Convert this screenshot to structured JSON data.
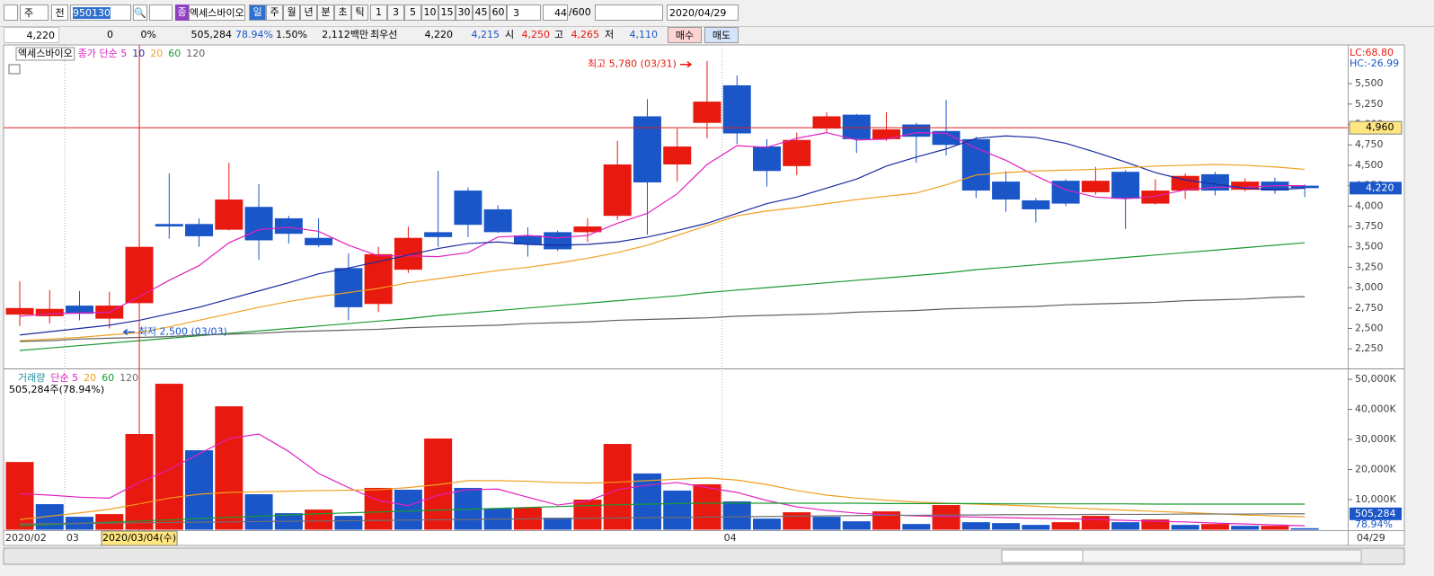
{
  "toolbar": {
    "period_button": "주",
    "scope": "전",
    "code": "950130",
    "market_badge": "종",
    "name": "엑세스바이오",
    "periods": [
      "일",
      "주",
      "월",
      "년",
      "분",
      "초",
      "틱"
    ],
    "intervals": [
      "1",
      "3",
      "5",
      "10",
      "15",
      "30",
      "45",
      "60"
    ],
    "interval_input": "3",
    "count": "44",
    "count_max": "/600",
    "date": "2020/04/29"
  },
  "info": {
    "price": "4,220",
    "change": "0",
    "change_pct": "0%",
    "volume": "505,284",
    "volume_ratio": "78.94%",
    "turnover": "1.50%",
    "amount": "2,112백만",
    "best_label": "최우선",
    "ask": "4,220",
    "bid": "4,215",
    "open_label": "시",
    "open": "4,250",
    "high_label": "고",
    "high": "4,265",
    "low_label": "저",
    "low": "4,110",
    "buy": "매수",
    "sell": "매도"
  },
  "chart_data": [
    {
      "type": "candlestick",
      "title": "엑세스바이오",
      "categories": [
        "2020/02",
        null,
        "03",
        null,
        null,
        null,
        null,
        null,
        null,
        null,
        null,
        null,
        null,
        null,
        null,
        null,
        null,
        null,
        null,
        null,
        null,
        null,
        null,
        null,
        "04",
        null,
        null,
        null,
        null,
        null,
        null,
        null,
        null,
        null,
        null,
        null,
        null,
        null,
        null,
        null,
        null,
        null,
        null,
        null
      ],
      "last_date": "04/29",
      "open": [
        2670,
        2650,
        2780,
        2620,
        2810,
        3780,
        3780,
        3710,
        3990,
        3850,
        3610,
        3240,
        2800,
        3220,
        3680,
        4190,
        3960,
        3640,
        3680,
        3680,
        3880,
        5100,
        4510,
        5020,
        5480,
        4730,
        4490,
        4950,
        5120,
        4820,
        5000,
        4920,
        4820,
        4300,
        4070,
        4310,
        4170,
        4420,
        4030,
        4190,
        4390,
        4200,
        4300,
        4250
      ],
      "high": [
        3080,
        2970,
        2960,
        2950,
        3620,
        4400,
        3850,
        4530,
        4270,
        3880,
        3850,
        3420,
        3500,
        3750,
        4430,
        4230,
        4010,
        3740,
        3700,
        3850,
        4800,
        5310,
        4950,
        5780,
        5600,
        4820,
        4900,
        5150,
        5130,
        5150,
        5020,
        5300,
        4850,
        4430,
        4100,
        4330,
        4480,
        4440,
        4330,
        4400,
        4420,
        4340,
        4350,
        4265
      ],
      "low": [
        2530,
        2560,
        2600,
        2500,
        2770,
        3600,
        3500,
        3700,
        3340,
        3540,
        3500,
        2600,
        2700,
        3180,
        3500,
        3620,
        3670,
        3380,
        3450,
        3560,
        3830,
        3650,
        4300,
        4830,
        4760,
        4240,
        4380,
        4900,
        4650,
        4800,
        4530,
        4620,
        4100,
        3930,
        3800,
        4000,
        4140,
        3720,
        4020,
        4090,
        4130,
        4180,
        4150,
        4110
      ],
      "close": [
        2750,
        2740,
        2680,
        2780,
        3500,
        3750,
        3630,
        4080,
        3580,
        3660,
        3520,
        2760,
        3410,
        3610,
        3620,
        3770,
        3680,
        3530,
        3470,
        3750,
        4510,
        4290,
        4730,
        5280,
        4890,
        4430,
        4810,
        5100,
        4820,
        4940,
        4850,
        4750,
        4190,
        4080,
        3960,
        4030,
        4310,
        4090,
        4190,
        4370,
        4190,
        4300,
        4190,
        4220
      ],
      "up_color": "#e8190f",
      "down_color": "#1a56c8",
      "series": [
        {
          "name": "종가 단순 5",
          "color": "#e020c0",
          "values": [
            2650,
            2680,
            2690,
            2700,
            2890,
            3090,
            3270,
            3550,
            3710,
            3740,
            3690,
            3520,
            3390,
            3390,
            3380,
            3430,
            3620,
            3640,
            3610,
            3640,
            3790,
            3910,
            4150,
            4510,
            4740,
            4720,
            4830,
            4900,
            4810,
            4820,
            4900,
            4890,
            4710,
            4560,
            4370,
            4200,
            4110,
            4090,
            4120,
            4200,
            4230,
            4230,
            4250,
            4250
          ]
        },
        {
          "name": "10",
          "color": "#1a2aa0",
          "values": [
            2420,
            2460,
            2500,
            2540,
            2600,
            2680,
            2760,
            2860,
            2960,
            3060,
            3170,
            3240,
            3320,
            3400,
            3480,
            3540,
            3560,
            3530,
            3520,
            3530,
            3560,
            3620,
            3700,
            3790,
            3910,
            4030,
            4110,
            4220,
            4330,
            4490,
            4600,
            4700,
            4830,
            4860,
            4840,
            4770,
            4660,
            4540,
            4410,
            4320,
            4270,
            4220,
            4200,
            4220
          ]
        },
        {
          "name": "20",
          "color": "#f0a020",
          "values": [
            2350,
            2370,
            2390,
            2420,
            2450,
            2520,
            2600,
            2680,
            2760,
            2830,
            2890,
            2940,
            2990,
            3060,
            3110,
            3160,
            3210,
            3250,
            3300,
            3360,
            3430,
            3520,
            3640,
            3760,
            3880,
            3940,
            3980,
            4030,
            4080,
            4120,
            4160,
            4260,
            4380,
            4410,
            4430,
            4440,
            4450,
            4470,
            4490,
            4500,
            4510,
            4500,
            4480,
            4450
          ]
        },
        {
          "name": "60",
          "color": "#1a9a30",
          "values": [
            2230,
            2260,
            2290,
            2320,
            2350,
            2380,
            2410,
            2440,
            2470,
            2500,
            2530,
            2560,
            2590,
            2620,
            2660,
            2690,
            2720,
            2750,
            2780,
            2810,
            2840,
            2870,
            2900,
            2940,
            2970,
            3000,
            3030,
            3060,
            3090,
            3120,
            3150,
            3180,
            3220,
            3250,
            3280,
            3310,
            3340,
            3370,
            3400,
            3430,
            3460,
            3490,
            3520,
            3550
          ]
        },
        {
          "name": "120",
          "color": "#606060",
          "values": [
            2340,
            2350,
            2370,
            2380,
            2390,
            2400,
            2420,
            2430,
            2440,
            2460,
            2470,
            2480,
            2490,
            2510,
            2520,
            2530,
            2540,
            2560,
            2570,
            2580,
            2600,
            2610,
            2620,
            2630,
            2650,
            2660,
            2670,
            2680,
            2700,
            2710,
            2720,
            2740,
            2750,
            2760,
            2770,
            2790,
            2800,
            2810,
            2820,
            2840,
            2850,
            2860,
            2880,
            2890
          ]
        }
      ],
      "ylim": [
        2010,
        5975
      ],
      "yticks": [
        {
          "value": 5500,
          "label": "5,500"
        },
        {
          "value": 5250,
          "label": "5,250"
        },
        {
          "value": 5000,
          "label": "5,000"
        },
        {
          "value": 4750,
          "label": "4,750"
        },
        {
          "value": 4500,
          "label": "4,500"
        },
        {
          "value": 4250,
          "label": "4,250"
        },
        {
          "value": 4000,
          "label": "4,000"
        },
        {
          "value": 3750,
          "label": "3,750"
        },
        {
          "value": 3500,
          "label": "3,500"
        },
        {
          "value": 3250,
          "label": "3,250"
        },
        {
          "value": 3000,
          "label": "3,000"
        },
        {
          "value": 2750,
          "label": "2,750"
        },
        {
          "value": 2500,
          "label": "2,500"
        },
        {
          "value": 2250,
          "label": "2,250"
        }
      ],
      "annotations": [
        {
          "text": "최고 5,780 (03/31)",
          "value": 5780,
          "category_index": 23,
          "side": "left",
          "color": "#e8190f"
        },
        {
          "text": "최저 2,500 (03/03)",
          "value": 2500,
          "category_index": 3,
          "side": "right",
          "color": "#1a56c8"
        }
      ],
      "lc": "LC:68.80",
      "hc": "HC:-26.99",
      "last_price": {
        "value": 4220,
        "label": "4,220"
      },
      "cursor_price": {
        "value": 4960,
        "label": "4,960"
      },
      "cursor_index": 4,
      "cursor_date": "2020/03/04(수)"
    },
    {
      "type": "bar",
      "title": "거래량",
      "legend": "505,284주(78.94%)",
      "values": [
        22500,
        8500,
        4300,
        5200,
        31800,
        48500,
        26400,
        41000,
        11800,
        5500,
        6700,
        4600,
        13900,
        13300,
        30300,
        13900,
        7000,
        7300,
        4000,
        10000,
        28500,
        18700,
        13000,
        15100,
        9400,
        3700,
        5800,
        4300,
        2800,
        6100,
        1900,
        8200,
        2500,
        2200,
        1600,
        2500,
        4600,
        2500,
        3400,
        1600,
        1900,
        1300,
        1300,
        505.284
      ],
      "up_color": "#e8190f",
      "down_color": "#1a56c8",
      "series": [
        {
          "name": "단순 5",
          "color": "#e020c0",
          "values": [
            12000,
            11500,
            10800,
            10500,
            15700,
            20000,
            25200,
            30300,
            31800,
            26000,
            18700,
            14000,
            9700,
            8000,
            11500,
            13300,
            13500,
            10800,
            8200,
            9500,
            13300,
            14800,
            15700,
            14000,
            12400,
            9700,
            7600,
            6400,
            5500,
            5000,
            4600,
            4400,
            4200,
            4000,
            3800,
            3600,
            3400,
            3100,
            2800,
            2600,
            2200,
            1900,
            1600,
            1300
          ]
        },
        {
          "name": "20",
          "color": "#f0a020",
          "values": [
            3400,
            4500,
            5600,
            6800,
            8600,
            10500,
            11800,
            12400,
            12600,
            12800,
            13000,
            13100,
            13300,
            14000,
            15000,
            16300,
            16300,
            16100,
            15700,
            15500,
            15800,
            16300,
            16800,
            17200,
            16500,
            15000,
            13000,
            11500,
            10500,
            9800,
            9200,
            8800,
            8500,
            8200,
            7800,
            7300,
            6900,
            6500,
            6100,
            5700,
            5300,
            4900,
            4600,
            4300
          ]
        },
        {
          "name": "60",
          "color": "#1a9a30",
          "values": [
            1300,
            1700,
            2100,
            2500,
            2900,
            3300,
            3700,
            4100,
            4500,
            4900,
            5300,
            5600,
            5900,
            6200,
            6500,
            6800,
            7100,
            7400,
            7700,
            8000,
            8300,
            8500,
            8700,
            8800,
            8800,
            8800,
            8800,
            8800,
            8800,
            8700,
            8700,
            8700,
            8700,
            8600,
            8600,
            8600,
            8600,
            8600,
            8500,
            8500,
            8500,
            8500,
            8500,
            8500
          ]
        },
        {
          "name": "120",
          "color": "#707070",
          "values": [
            1900,
            2000,
            2100,
            2200,
            2300,
            2400,
            2500,
            2600,
            2700,
            2800,
            2900,
            3000,
            3100,
            3200,
            3300,
            3400,
            3500,
            3600,
            3700,
            3800,
            3900,
            4000,
            4100,
            4200,
            4300,
            4400,
            4500,
            4600,
            4700,
            4800,
            4800,
            4900,
            4900,
            5000,
            5000,
            5000,
            5100,
            5100,
            5100,
            5200,
            5200,
            5200,
            5300,
            5300
          ]
        }
      ],
      "ylim": [
        0,
        53000
      ],
      "yticks": [
        {
          "value": 50000,
          "label": "50,000K"
        },
        {
          "value": 40000,
          "label": "40,000K"
        },
        {
          "value": 30000,
          "label": "30,000K"
        },
        {
          "value": 20000,
          "label": "20,000K"
        },
        {
          "value": 10000,
          "label": "10,000K"
        }
      ],
      "last_value": {
        "value": 505.284,
        "label": "505,284"
      },
      "last_ratio": "78.94%"
    }
  ]
}
